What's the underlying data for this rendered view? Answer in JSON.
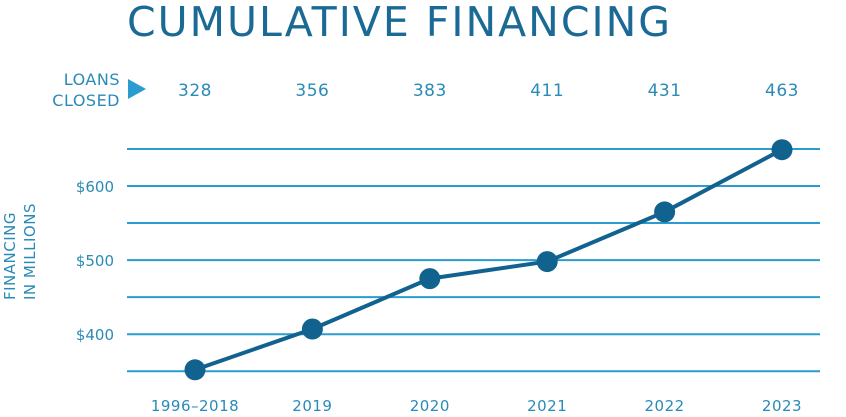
{
  "header": {
    "title": "CUMULATIVE FINANCING"
  },
  "loans": {
    "label_line1": "LOANS",
    "label_line2": "CLOSED",
    "counts": [
      "328",
      "356",
      "383",
      "411",
      "431",
      "463"
    ]
  },
  "y_axis": {
    "line1": "FINANCING",
    "line2": "IN MILLIONS"
  },
  "colors": {
    "title": "#1a6a95",
    "accent": "#2a9cd0",
    "line": "#12628f",
    "grid": "#2a9cd0",
    "text": "#2a8ab8"
  },
  "chart_data": {
    "type": "line",
    "categories": [
      "1996–2018",
      "2019",
      "2020",
      "2021",
      "2022",
      "2023"
    ],
    "series": [
      {
        "values": [
          352,
          407,
          475,
          498,
          565,
          649
        ]
      }
    ],
    "yticks": [
      400,
      500,
      600
    ],
    "ytick_labels": [
      "$400",
      "$500",
      "$600"
    ],
    "ylim": [
      325,
      675
    ],
    "grid": true,
    "ylabel": "FINANCING IN MILLIONS"
  }
}
